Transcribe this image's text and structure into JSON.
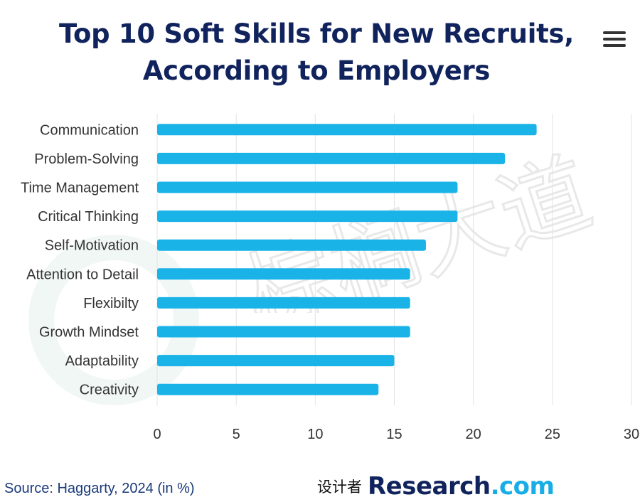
{
  "title_lines": [
    "Top 10 Soft Skills for New Recruits,",
    "According to Employers"
  ],
  "menu_icon": "hamburger-menu-icon",
  "watermark_text": "棕榈大道",
  "source": "Source: Haggarty, 2024 (in %)",
  "brand": {
    "prefix": "设计者",
    "name": "Research",
    "suffix": ".com"
  },
  "colors": {
    "bar": "#1ab3e8",
    "title": "#10235c",
    "accent": "#17aee5",
    "grid": "#e3e3e3"
  },
  "chart_data": {
    "type": "bar",
    "orientation": "horizontal",
    "categories": [
      "Communication",
      "Problem-Solving",
      "Time Management",
      "Critical Thinking",
      "Self-Motivation",
      "Attention to Detail",
      "Flexibilty",
      "Growth Mindset",
      "Adaptability",
      "Creativity"
    ],
    "values": [
      24,
      22,
      19,
      19,
      17,
      16,
      16,
      16,
      15,
      14
    ],
    "xlim": [
      0,
      30
    ],
    "xticks": [
      0,
      5,
      10,
      15,
      20,
      25,
      30
    ],
    "grid": true,
    "legend": "none"
  }
}
